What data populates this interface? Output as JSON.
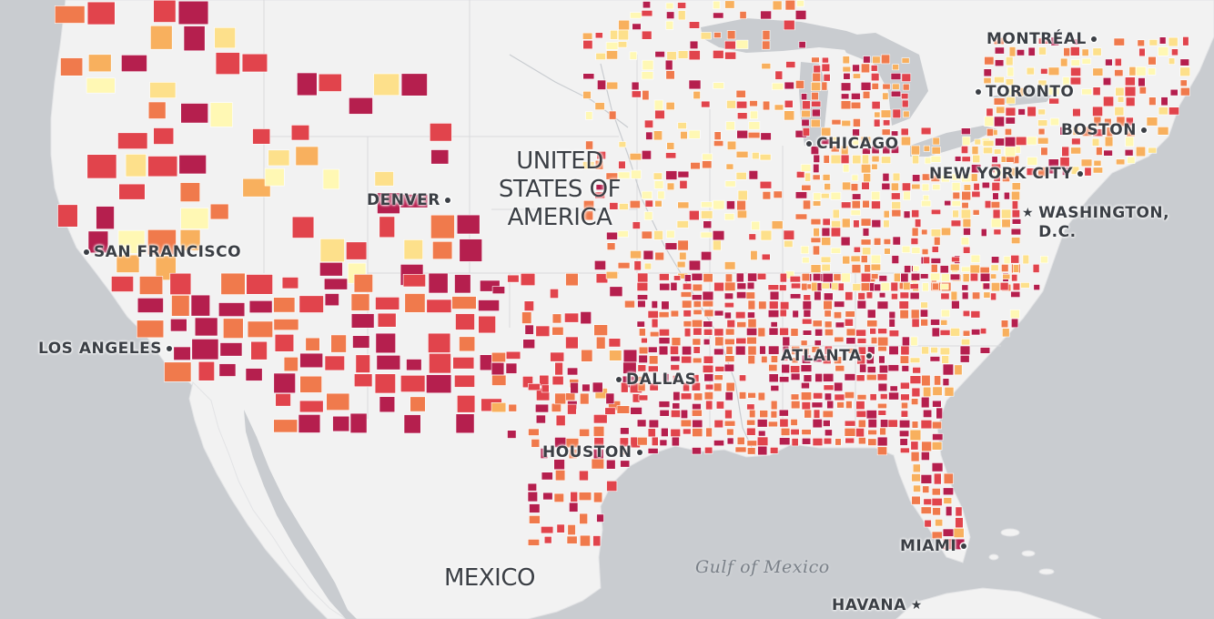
{
  "map": {
    "country_labels": {
      "usa_line1": "UNITED",
      "usa_line2": "STATES OF",
      "usa_line3": "AMERICA",
      "mexico": "MEXICO"
    },
    "water_labels": {
      "gulf": "Gulf of Mexico"
    },
    "cities": {
      "montreal": "MONTRÉAL",
      "toronto": "TORONTO",
      "boston": "BOSTON",
      "chicago": "CHICAGO",
      "new_york": "NEW YORK CITY",
      "washington_line1": "WASHINGTON,",
      "washington_line2": "D.C.",
      "denver": "DENVER",
      "san_francisco": "SAN FRANCISCO",
      "los_angeles": "LOS ANGELES",
      "dallas": "DALLAS",
      "atlanta": "ATLANTA",
      "houston": "HOUSTON",
      "miami": "MIAMI",
      "havana": "HAVANA"
    },
    "colors": {
      "water": "#c9ccd0",
      "land": "#f2f2f2",
      "choropleth_scale": [
        "#fff8b4",
        "#fde08b",
        "#f8b05e",
        "#f07a4c",
        "#e1444c",
        "#b51f4e"
      ]
    }
  }
}
